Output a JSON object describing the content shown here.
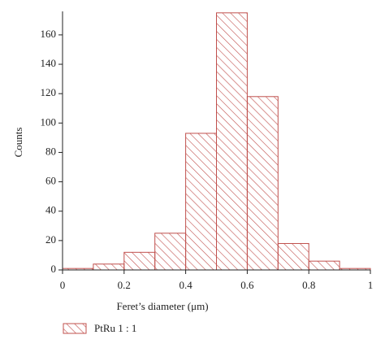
{
  "chart_data": {
    "type": "histogram",
    "xlabel": "Feret’s diameter (μm)",
    "ylabel": "Counts",
    "bins": [
      0,
      0.1,
      0.2,
      0.3,
      0.4,
      0.5,
      0.6,
      0.7,
      0.8,
      0.9,
      1.0
    ],
    "series": [
      {
        "name": "PtRu 1 : 1",
        "color": "#c0504d",
        "values": [
          1,
          4,
          12,
          25,
          93,
          175,
          118,
          18,
          6,
          1
        ]
      }
    ],
    "xlim": [
      0,
      1
    ],
    "xticks": [
      0,
      0.2,
      0.4,
      0.6,
      0.8,
      1
    ],
    "ylim": [
      0,
      176
    ],
    "yticks": [
      0,
      20,
      40,
      60,
      80,
      100,
      120,
      140,
      160
    ]
  }
}
